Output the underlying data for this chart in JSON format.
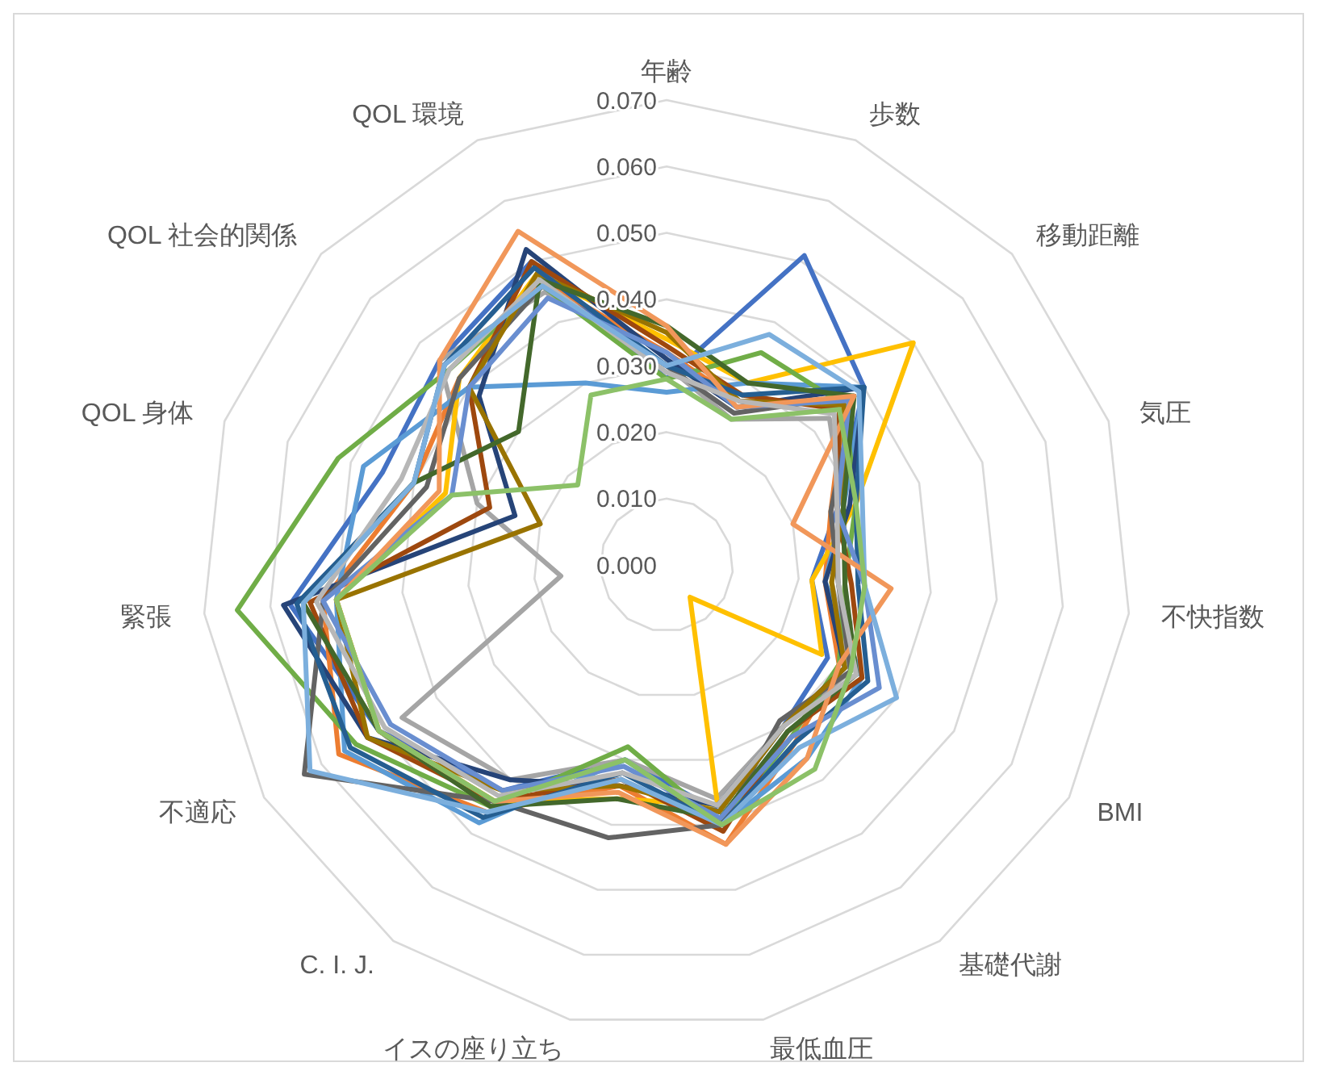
{
  "chart_data": {
    "type": "radar",
    "categories": [
      "年齢",
      "歩数",
      "移動距離",
      "気圧",
      "不快指数",
      "BMI",
      "基礎代謝",
      "最低血圧",
      "イスの座り立ち",
      "C. I. J.",
      "不適応",
      "緊張",
      "QOL 身体",
      "QOL 社会的関係",
      "QOL 環境"
    ],
    "ylim": [
      0,
      0.07
    ],
    "yticks": [
      {
        "value": 0,
        "label": "0.000"
      },
      {
        "value": 0.01,
        "label": "0.010"
      },
      {
        "value": 0.02,
        "label": "0.020"
      },
      {
        "value": 0.03,
        "label": "0.030"
      },
      {
        "value": 0.04,
        "label": "0.040"
      },
      {
        "value": 0.05,
        "label": "0.050"
      },
      {
        "value": 0.06,
        "label": "0.060"
      },
      {
        "value": 0.07,
        "label": "0.070"
      }
    ],
    "grid": true,
    "series": [
      {
        "color": "#4472c4",
        "values": [
          0.028,
          0.051,
          0.04,
          0.027,
          0.022,
          0.028,
          0.03,
          0.038,
          0.03,
          0.042,
          0.05,
          0.057,
          0.045,
          0.046,
          0.05
        ]
      },
      {
        "color": "#ed7d31",
        "values": [
          0.032,
          0.027,
          0.036,
          0.026,
          0.024,
          0.03,
          0.033,
          0.043,
          0.034,
          0.046,
          0.057,
          0.052,
          0.04,
          0.042,
          0.047
        ]
      },
      {
        "color": "#a5a5a5",
        "values": [
          0.03,
          0.024,
          0.033,
          0.028,
          0.025,
          0.032,
          0.03,
          0.036,
          0.03,
          0.04,
          0.046,
          0.016,
          0.03,
          0.046,
          0.045
        ]
      },
      {
        "color": "#ffc000",
        "values": [
          0.034,
          0.03,
          0.05,
          0.03,
          0.022,
          0.027,
          0.006,
          0.037,
          0.036,
          0.044,
          0.05,
          0.05,
          0.035,
          0.042,
          0.048
        ]
      },
      {
        "color": "#5b9bd5",
        "values": [
          0.026,
          0.03,
          0.04,
          0.028,
          0.024,
          0.034,
          0.036,
          0.04,
          0.03,
          0.048,
          0.056,
          0.05,
          0.048,
          0.04,
          0.03
        ]
      },
      {
        "color": "#70ad47",
        "values": [
          0.028,
          0.035,
          0.036,
          0.03,
          0.027,
          0.03,
          0.032,
          0.04,
          0.028,
          0.045,
          0.054,
          0.065,
          0.052,
          0.044,
          0.046
        ]
      },
      {
        "color": "#264478",
        "values": [
          0.031,
          0.026,
          0.04,
          0.029,
          0.024,
          0.031,
          0.03,
          0.037,
          0.034,
          0.04,
          0.052,
          0.058,
          0.024,
          0.038,
          0.052
        ]
      },
      {
        "color": "#9e480e",
        "values": [
          0.033,
          0.028,
          0.035,
          0.027,
          0.028,
          0.034,
          0.031,
          0.041,
          0.033,
          0.044,
          0.052,
          0.054,
          0.028,
          0.04,
          0.05
        ]
      },
      {
        "color": "#636363",
        "values": [
          0.03,
          0.025,
          0.038,
          0.026,
          0.026,
          0.032,
          0.029,
          0.04,
          0.042,
          0.044,
          0.063,
          0.052,
          0.038,
          0.042,
          0.046
        ]
      },
      {
        "color": "#997300",
        "values": [
          0.035,
          0.027,
          0.036,
          0.028,
          0.025,
          0.031,
          0.03,
          0.038,
          0.034,
          0.042,
          0.052,
          0.05,
          0.02,
          0.04,
          0.048
        ]
      },
      {
        "color": "#255e91",
        "values": [
          0.03,
          0.028,
          0.04,
          0.03,
          0.029,
          0.035,
          0.033,
          0.04,
          0.032,
          0.047,
          0.055,
          0.056,
          0.04,
          0.045,
          0.049
        ]
      },
      {
        "color": "#43682b",
        "values": [
          0.036,
          0.03,
          0.038,
          0.028,
          0.027,
          0.033,
          0.031,
          0.039,
          0.036,
          0.045,
          0.05,
          0.055,
          0.04,
          0.03,
          0.047
        ]
      },
      {
        "color": "#698ed0",
        "values": [
          0.032,
          0.026,
          0.037,
          0.027,
          0.03,
          0.037,
          0.032,
          0.039,
          0.031,
          0.042,
          0.048,
          0.052,
          0.034,
          0.04,
          0.044
        ]
      },
      {
        "color": "#f1975a",
        "values": [
          0.036,
          0.026,
          0.038,
          0.02,
          0.034,
          0.03,
          0.036,
          0.043,
          0.035,
          0.044,
          0.05,
          0.05,
          0.036,
          0.046,
          0.055
        ]
      },
      {
        "color": "#b7b7b7",
        "values": [
          0.029,
          0.027,
          0.034,
          0.027,
          0.026,
          0.033,
          0.03,
          0.037,
          0.032,
          0.043,
          0.049,
          0.053,
          0.042,
          0.044,
          0.047
        ]
      },
      {
        "color": "#7cafdd",
        "values": [
          0.03,
          0.038,
          0.039,
          0.031,
          0.03,
          0.04,
          0.034,
          0.04,
          0.033,
          0.046,
          0.062,
          0.055,
          0.04,
          0.045,
          0.046
        ]
      },
      {
        "color": "#8cc168",
        "values": [
          0.028,
          0.024,
          0.035,
          0.03,
          0.03,
          0.032,
          0.038,
          0.04,
          0.03,
          0.044,
          0.05,
          0.05,
          0.034,
          0.018,
          0.028
        ]
      }
    ]
  }
}
